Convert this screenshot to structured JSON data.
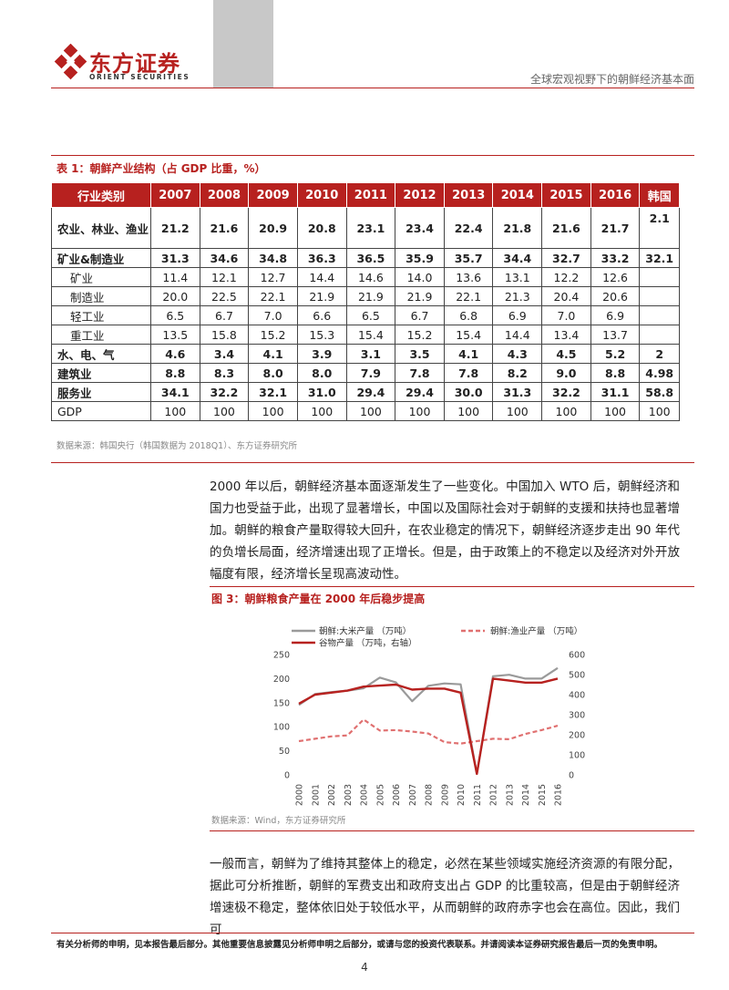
{
  "header": {
    "brand": "东方证券",
    "brand_en": "ORIENT SECURITIES",
    "title": "全球宏观视野下的朝鲜经济基本面",
    "brand_color": "#b7211f"
  },
  "table1": {
    "caption": "表 1：朝鲜产业结构（占 GDP 比重，%）",
    "headers": [
      "行业类别",
      "2007",
      "2008",
      "2009",
      "2010",
      "2011",
      "2012",
      "2013",
      "2014",
      "2015",
      "2016",
      "韩国"
    ],
    "rows": [
      {
        "label": "农业、林业、渔业",
        "values": [
          "21.2",
          "21.6",
          "20.9",
          "20.8",
          "23.1",
          "23.4",
          "22.4",
          "21.8",
          "21.6",
          "21.7",
          "2.1"
        ]
      },
      {
        "label": "矿业&制造业",
        "values": [
          "31.3",
          "34.6",
          "34.8",
          "36.3",
          "36.5",
          "35.9",
          "35.7",
          "34.4",
          "32.7",
          "33.2",
          "32.1"
        ]
      },
      {
        "label": "矿业",
        "values": [
          "11.4",
          "12.1",
          "12.7",
          "14.4",
          "14.6",
          "14.0",
          "13.6",
          "13.1",
          "12.2",
          "12.6",
          ""
        ]
      },
      {
        "label": "制造业",
        "values": [
          "20.0",
          "22.5",
          "22.1",
          "21.9",
          "21.9",
          "21.9",
          "22.1",
          "21.3",
          "20.4",
          "20.6",
          ""
        ]
      },
      {
        "label": "轻工业",
        "values": [
          "6.5",
          "6.7",
          "7.0",
          "6.6",
          "6.5",
          "6.7",
          "6.8",
          "6.9",
          "7.0",
          "6.9",
          ""
        ]
      },
      {
        "label": "重工业",
        "values": [
          "13.5",
          "15.8",
          "15.2",
          "15.3",
          "15.4",
          "15.2",
          "15.4",
          "14.4",
          "13.4",
          "13.7",
          ""
        ]
      },
      {
        "label": "水、电、气",
        "values": [
          "4.6",
          "3.4",
          "4.1",
          "3.9",
          "3.1",
          "3.5",
          "4.1",
          "4.3",
          "4.5",
          "5.2",
          "2"
        ]
      },
      {
        "label": "建筑业",
        "values": [
          "8.8",
          "8.3",
          "8.0",
          "8.0",
          "7.9",
          "7.8",
          "7.8",
          "8.2",
          "9.0",
          "8.8",
          "4.98"
        ]
      },
      {
        "label": "服务业",
        "values": [
          "34.1",
          "32.2",
          "32.1",
          "31.0",
          "29.4",
          "29.4",
          "30.0",
          "31.3",
          "32.2",
          "31.1",
          "58.8"
        ]
      },
      {
        "label": "GDP",
        "values": [
          "100",
          "100",
          "100",
          "100",
          "100",
          "100",
          "100",
          "100",
          "100",
          "100",
          "100"
        ]
      }
    ],
    "source": "数据来源：韩国央行（韩国数据为 2018Q1）、东方证券研究所"
  },
  "paragraph1": "2000 年以后，朝鲜经济基本面逐渐发生了一些变化。中国加入 WTO 后，朝鲜经济和国力也受益于此，出现了显著增长，中国以及国际社会对于朝鲜的支援和扶持也显著增加。朝鲜的粮食产量取得较大回升，在农业稳定的情况下，朝鲜经济逐步走出 90 年代的负增长局面，经济增速出现了正增长。但是，由于政策上的不稳定以及经济对外开放幅度有限，经济增长呈现高波动性。",
  "figure3": {
    "caption": "图 3：朝鲜粮食产量在 2000 年后稳步提高",
    "source": "数据来源：Wind，东方证券研究所"
  },
  "chart_data": {
    "type": "line",
    "title": "",
    "x": [
      "2000",
      "2001",
      "2002",
      "2003",
      "2004",
      "2005",
      "2006",
      "2007",
      "2008",
      "2009",
      "2010",
      "2011",
      "2012",
      "2013",
      "2014",
      "2015",
      "2016"
    ],
    "series": [
      {
        "name": "朝鲜:大米产量 （万吨）",
        "axis": "left",
        "color": "#9a9a9a",
        "style": "solid",
        "values": [
          145,
          168,
          172,
          175,
          180,
          202,
          192,
          153,
          185,
          190,
          188,
          2,
          205,
          208,
          200,
          200,
          222
        ]
      },
      {
        "name": "朝鲜:渔业产量 （万吨）",
        "axis": "left",
        "color": "#e07070",
        "style": "dashed",
        "values": [
          70,
          75,
          80,
          82,
          115,
          92,
          93,
          90,
          86,
          68,
          65,
          70,
          75,
          74,
          85,
          93,
          102
        ]
      },
      {
        "name": "谷物产量 （万吨，右轴）",
        "axis": "right",
        "color": "#b7211f",
        "style": "solid",
        "values": [
          355,
          400,
          410,
          420,
          440,
          445,
          450,
          425,
          430,
          430,
          410,
          5,
          480,
          470,
          460,
          460,
          480
        ]
      }
    ],
    "yleft": {
      "range": [
        0,
        250
      ],
      "ticks": [
        "0",
        "50",
        "100",
        "150",
        "200",
        "250"
      ]
    },
    "yright": {
      "range": [
        0,
        600
      ],
      "ticks": [
        "0",
        "100",
        "200",
        "300",
        "400",
        "500",
        "600"
      ]
    },
    "legend": "top",
    "grid": false
  },
  "paragraph2": "一般而言，朝鲜为了维持其整体上的稳定，必然在某些领域实施经济资源的有限分配，据此可分析推断，朝鲜的军费支出和政府支出占 GDP 的比重较高，但是由于朝鲜经济增速极不稳定，整体依旧处于较低水平，从而朝鲜的政府赤字也会在高位。因此，我们可",
  "footer": {
    "disclaimer": "有关分析师的申明，见本报告最后部分。其他重要信息披露见分析师申明之后部分，或请与您的投资代表联系。并请阅读本证券研究报告最后一页的免责申明。",
    "page": "4"
  }
}
